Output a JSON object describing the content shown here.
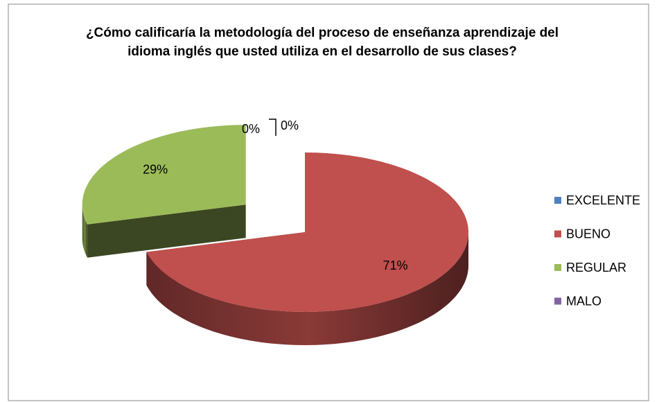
{
  "chart_data": {
    "type": "pie",
    "title": "¿Cómo calificaría la metodología del proceso de enseñanza aprendizaje del idioma inglés que usted utiliza en el desarrollo de sus clases?",
    "categories": [
      "EXCELENTE",
      "BUENO",
      "REGULAR",
      "MALO"
    ],
    "values": [
      0,
      71,
      29,
      0
    ],
    "value_labels": [
      "0%",
      "71%",
      "29%",
      "0%"
    ],
    "colors": [
      "#4f81bd",
      "#c0504d",
      "#9bbb59",
      "#8064a2"
    ],
    "legend": "right"
  }
}
